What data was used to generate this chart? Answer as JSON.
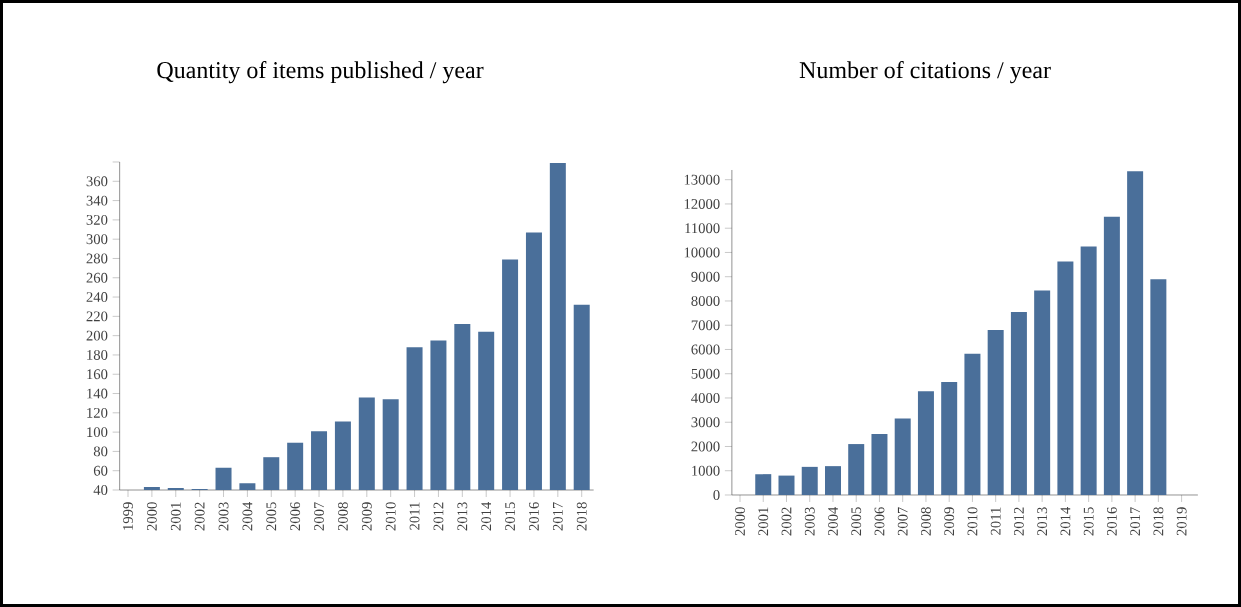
{
  "chart_data": [
    {
      "type": "bar",
      "title": "Quantity of items published / year",
      "categories": [
        "1999",
        "2000",
        "2001",
        "2002",
        "2003",
        "2004",
        "2005",
        "2006",
        "2007",
        "2008",
        "2009",
        "2010",
        "2011",
        "2012",
        "2013",
        "2014",
        "2015",
        "2016",
        "2017",
        "2018"
      ],
      "values": [
        null,
        43,
        42,
        41,
        63,
        47,
        74,
        89,
        101,
        111,
        136,
        134,
        188,
        195,
        212,
        204,
        279,
        307,
        379,
        232
      ],
      "color": "#4a6f9a",
      "ylim": [
        40,
        380
      ],
      "yticks": [
        40,
        60,
        80,
        100,
        120,
        140,
        160,
        180,
        200,
        220,
        240,
        260,
        280,
        300,
        320,
        340,
        360,
        {
          "value": 380,
          "label": null
        }
      ],
      "grid": false
    },
    {
      "type": "bar",
      "title": "Number of citations / year",
      "categories": [
        "2000",
        "2001",
        "2002",
        "2003",
        "2004",
        "2005",
        "2006",
        "2007",
        "2008",
        "2009",
        "2010",
        "2011",
        "2012",
        "2013",
        "2014",
        "2015",
        "2016",
        "2017",
        "2018",
        "2019"
      ],
      "values": [
        null,
        860,
        800,
        1160,
        1190,
        2100,
        2520,
        3150,
        4280,
        4660,
        5820,
        6800,
        7550,
        8430,
        9630,
        10250,
        11470,
        13350,
        8900,
        null
      ],
      "color": "#4a6f9a",
      "ylim": [
        0,
        13400
      ],
      "yticks": [
        0,
        1000,
        2000,
        3000,
        4000,
        5000,
        6000,
        7000,
        8000,
        9000,
        10000,
        11000,
        12000,
        13000
      ],
      "grid": false
    }
  ]
}
